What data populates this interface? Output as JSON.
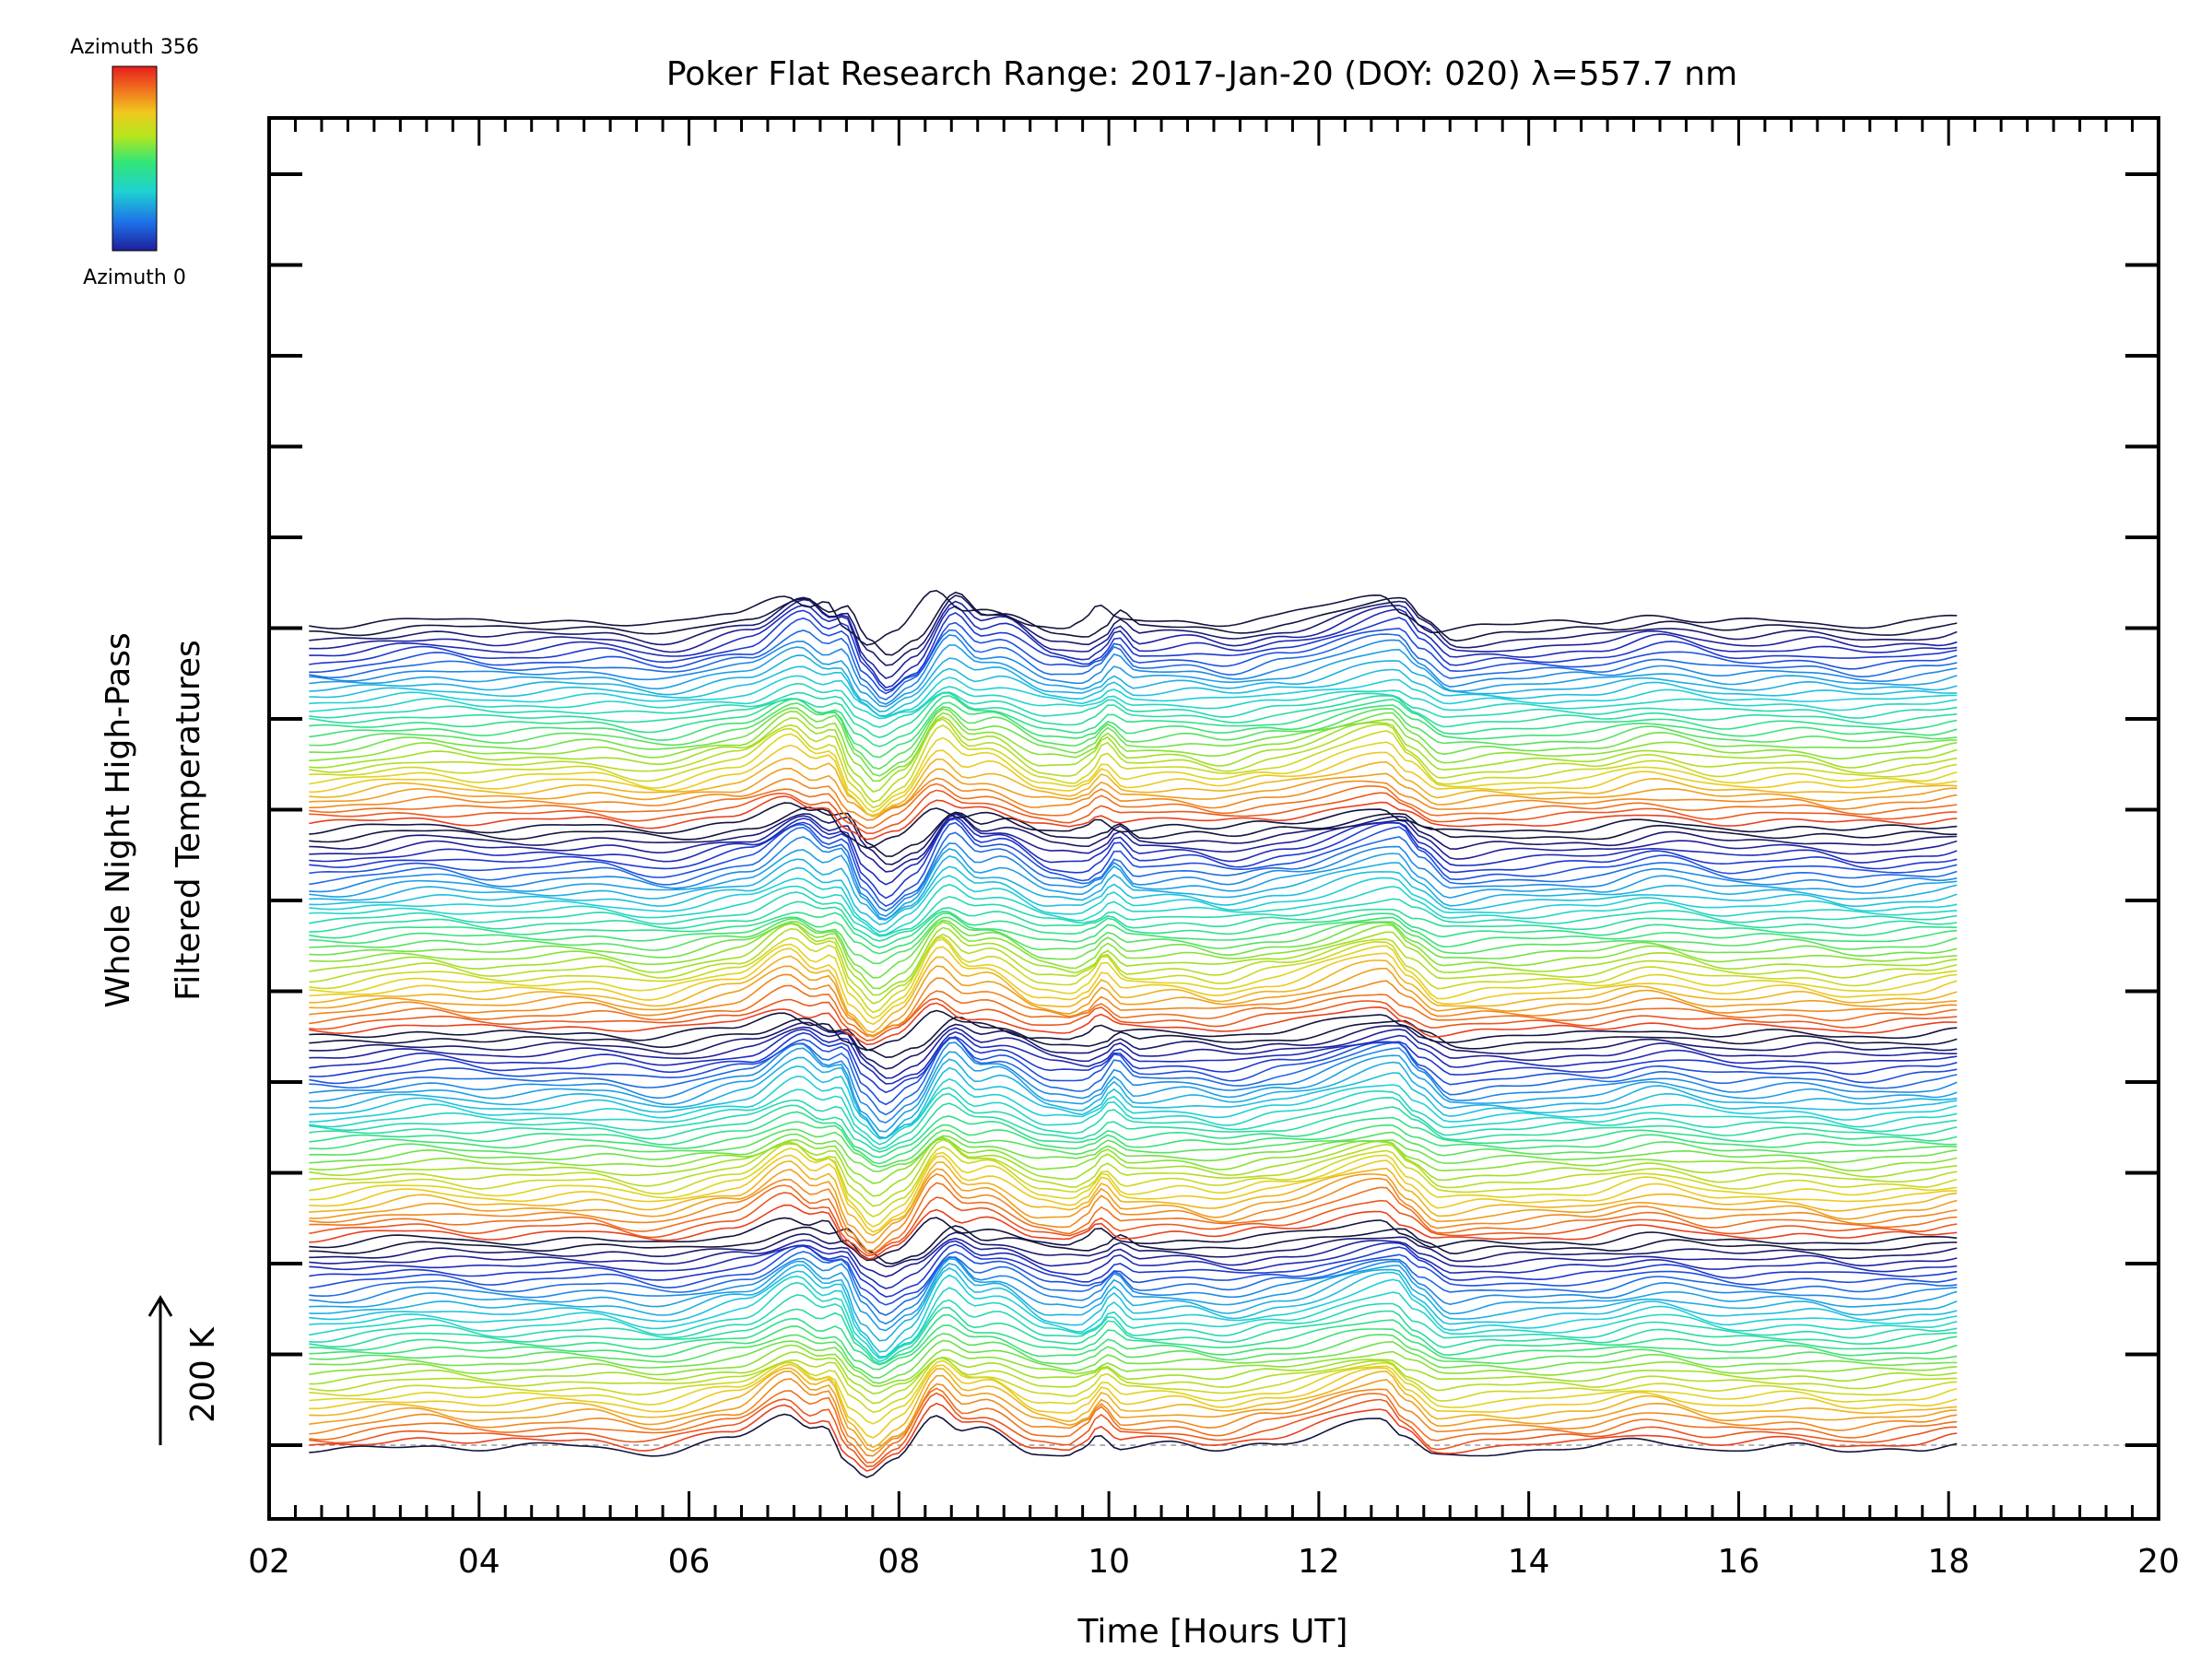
{
  "chart_data": {
    "type": "line",
    "title": "Poker Flat Research Range: 2017-Jan-20 (DOY: 020) λ=557.7 nm",
    "xlabel": "Time [Hours UT]",
    "ylabel_line1": "Whole Night High-Pass",
    "ylabel_line2": "Filtered Temperatures",
    "scale_label": "200 K",
    "xlim": [
      2,
      20
    ],
    "x_tick_labels": [
      "02",
      "04",
      "06",
      "08",
      "10",
      "12",
      "14",
      "16",
      "18",
      "20"
    ],
    "grid": false,
    "colorbar": {
      "top_label": "Azimuth 356",
      "bottom_label": "Azimuth 0",
      "colors": [
        "#1e1e9a",
        "#1e6ee8",
        "#1ed2d2",
        "#32e678",
        "#b4e61e",
        "#f0c81e",
        "#f06e1e",
        "#e61e1e"
      ]
    },
    "series_count": 129,
    "x_start": 2.38,
    "x_end": 18.08,
    "profile_knots": [
      {
        "x": 2.38,
        "y": -30
      },
      {
        "x": 3.4,
        "y": 5
      },
      {
        "x": 4.0,
        "y": -15
      },
      {
        "x": 5.0,
        "y": 0
      },
      {
        "x": 5.6,
        "y": -30
      },
      {
        "x": 6.4,
        "y": 20
      },
      {
        "x": 6.92,
        "y": 110
      },
      {
        "x": 7.15,
        "y": 60
      },
      {
        "x": 7.3,
        "y": 75
      },
      {
        "x": 7.5,
        "y": -50
      },
      {
        "x": 7.7,
        "y": -110
      },
      {
        "x": 7.95,
        "y": -55
      },
      {
        "x": 8.35,
        "y": 110
      },
      {
        "x": 8.6,
        "y": 45
      },
      {
        "x": 8.8,
        "y": 55
      },
      {
        "x": 9.3,
        "y": -25
      },
      {
        "x": 9.6,
        "y": -35
      },
      {
        "x": 9.75,
        "y": -10
      },
      {
        "x": 9.9,
        "y": 45
      },
      {
        "x": 10.1,
        "y": -10
      },
      {
        "x": 10.6,
        "y": 0
      },
      {
        "x": 11.0,
        "y": -20
      },
      {
        "x": 11.5,
        "y": 10
      },
      {
        "x": 12.6,
        "y": 95
      },
      {
        "x": 12.8,
        "y": 30
      },
      {
        "x": 13.1,
        "y": -40
      },
      {
        "x": 13.6,
        "y": -25
      },
      {
        "x": 14.5,
        "y": -15
      },
      {
        "x": 15.1,
        "y": 20
      },
      {
        "x": 15.8,
        "y": -15
      },
      {
        "x": 16.5,
        "y": -5
      },
      {
        "x": 17.0,
        "y": -25
      },
      {
        "x": 17.68,
        "y": -10
      },
      {
        "x": 18.08,
        "y": 10
      }
    ]
  }
}
